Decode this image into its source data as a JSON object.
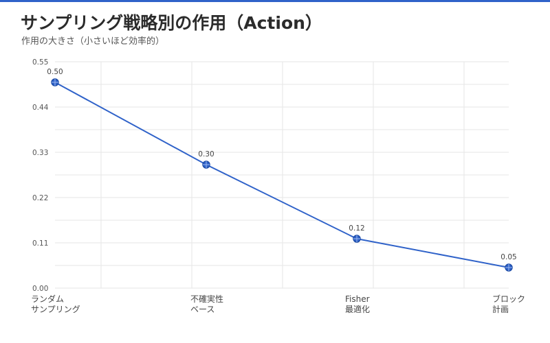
{
  "header": {
    "title": "サンプリング戦略別の作用（Action）",
    "subtitle": "作用の大きさ（小さいほど効率的）"
  },
  "colors": {
    "accent": "#2f62c9",
    "grid": "#e6e6e6"
  },
  "chart_data": {
    "type": "line",
    "title": "サンプリング戦略別の作用（Action）",
    "subtitle": "作用の大きさ（小さいほど効率的）",
    "xlabel": "",
    "ylabel": "",
    "categories": [
      [
        "ランダム",
        "サンプリング"
      ],
      [
        "不確実性",
        "ベース"
      ],
      [
        "Fisher",
        "最適化"
      ],
      [
        "ブロック",
        "計画"
      ]
    ],
    "series": [
      {
        "values": [
          0.5,
          0.3,
          0.12,
          0.05
        ],
        "labels": [
          "0.50",
          "0.30",
          "0.12",
          "0.05"
        ]
      }
    ],
    "ylim": [
      0,
      0.55
    ],
    "yticks": [
      "0.00",
      "0.11",
      "0.22",
      "0.33",
      "0.44",
      "0.55"
    ],
    "grid": true,
    "legend": "none"
  }
}
